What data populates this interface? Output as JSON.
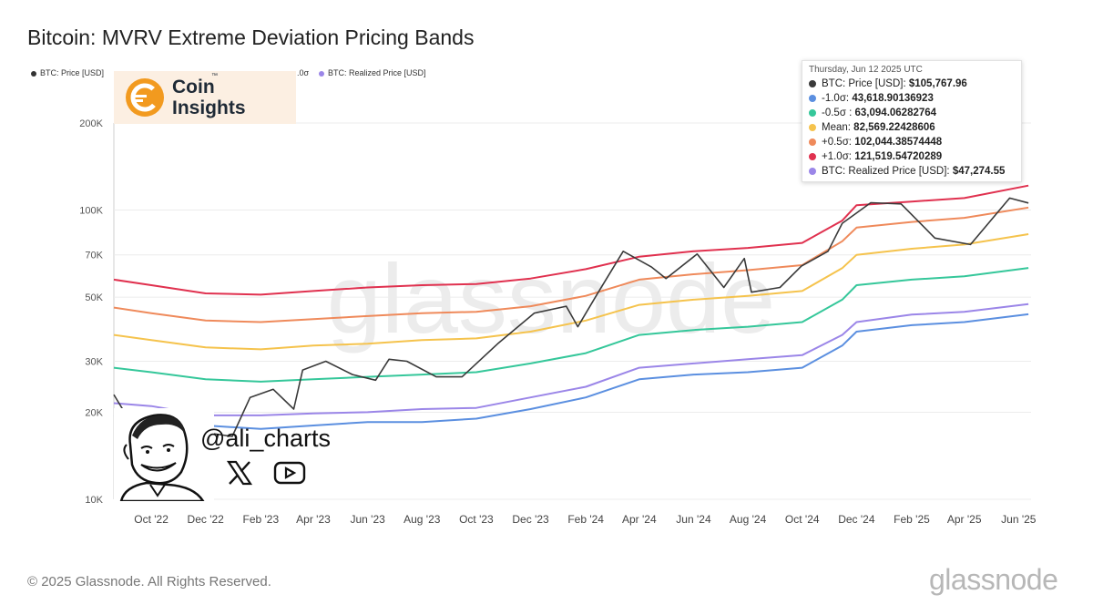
{
  "title": "Bitcoin: MVRV Extreme Deviation Pricing Bands",
  "legend_strip": [
    {
      "label": "BTC: Price [USD]",
      "color": "#333333"
    },
    {
      "label": ".0σ",
      "color": ""
    },
    {
      "label": "BTC: Realized Price [USD]",
      "color": "#9b86e8"
    }
  ],
  "logo": {
    "line1": "Coin",
    "line2": "Insights",
    "tm": "™"
  },
  "tooltip": {
    "date": "Thursday, Jun 12 2025 UTC",
    "rows": [
      {
        "label": "BTC: Price [USD]:",
        "value": "$105,767.96",
        "color": "#3a3a3a"
      },
      {
        "label": "-1.0σ:",
        "value": "43,618.90136923",
        "color": "#5b8fe0"
      },
      {
        "label": "-0.5σ :",
        "value": "63,094.06282764",
        "color": "#35c79a"
      },
      {
        "label": "Mean:",
        "value": "82,569.22428606",
        "color": "#f5c34d"
      },
      {
        "label": "+0.5σ:",
        "value": "102,044.38574448",
        "color": "#ef8a5b"
      },
      {
        "label": "+1.0σ:",
        "value": "121,519.54720289",
        "color": "#e0314f"
      },
      {
        "label": "BTC: Realized Price [USD]:",
        "value": "$47,274.55",
        "color": "#9b86e8"
      }
    ]
  },
  "watermark": "glassnode",
  "handle": "@ali_charts",
  "social_icons": [
    "x-icon",
    "youtube-icon"
  ],
  "copyright": "© 2025 Glassnode. All Rights Reserved.",
  "brand": "glassnode",
  "chart_data": {
    "type": "line",
    "title": "Bitcoin: MVRV Extreme Deviation Pricing Bands",
    "y_scale": "log",
    "ylim": [
      10000,
      200000
    ],
    "yticks": [
      {
        "value": 10000,
        "label": "10K"
      },
      {
        "value": 20000,
        "label": "20K"
      },
      {
        "value": 30000,
        "label": "30K"
      },
      {
        "value": 50000,
        "label": "50K"
      },
      {
        "value": 70000,
        "label": "70K"
      },
      {
        "value": 100000,
        "label": "100K"
      },
      {
        "value": 200000,
        "label": "200K"
      }
    ],
    "xlim": [
      "2022-08-20",
      "2025-06-15"
    ],
    "xticks": [
      {
        "date": "2022-10-01",
        "label": "Oct '22"
      },
      {
        "date": "2022-12-01",
        "label": "Dec '22"
      },
      {
        "date": "2023-02-01",
        "label": "Feb '23"
      },
      {
        "date": "2023-04-01",
        "label": "Apr '23"
      },
      {
        "date": "2023-06-01",
        "label": "Jun '23"
      },
      {
        "date": "2023-08-01",
        "label": "Aug '23"
      },
      {
        "date": "2023-10-01",
        "label": "Oct '23"
      },
      {
        "date": "2023-12-01",
        "label": "Dec '23"
      },
      {
        "date": "2024-02-01",
        "label": "Feb '24"
      },
      {
        "date": "2024-04-01",
        "label": "Apr '24"
      },
      {
        "date": "2024-06-01",
        "label": "Jun '24"
      },
      {
        "date": "2024-08-01",
        "label": "Aug '24"
      },
      {
        "date": "2024-10-01",
        "label": "Oct '24"
      },
      {
        "date": "2024-12-01",
        "label": "Dec '24"
      },
      {
        "date": "2025-02-01",
        "label": "Feb '25"
      },
      {
        "date": "2025-04-01",
        "label": "Apr '25"
      },
      {
        "date": "2025-06-01",
        "label": "Jun '25"
      }
    ],
    "grid": "horizontal",
    "series": [
      {
        "name": "+1.0σ",
        "color": "#e0314f",
        "points": [
          [
            "2022-08-20",
            57500
          ],
          [
            "2022-10-01",
            55000
          ],
          [
            "2022-12-01",
            51500
          ],
          [
            "2023-02-01",
            51000
          ],
          [
            "2023-04-01",
            52500
          ],
          [
            "2023-06-01",
            54000
          ],
          [
            "2023-08-01",
            55000
          ],
          [
            "2023-10-01",
            55500
          ],
          [
            "2023-12-01",
            58000
          ],
          [
            "2024-02-01",
            62500
          ],
          [
            "2024-04-01",
            69000
          ],
          [
            "2024-06-01",
            72000
          ],
          [
            "2024-08-01",
            74000
          ],
          [
            "2024-10-01",
            77000
          ],
          [
            "2024-11-15",
            92000
          ],
          [
            "2024-12-01",
            104000
          ],
          [
            "2025-02-01",
            107000
          ],
          [
            "2025-04-01",
            110000
          ],
          [
            "2025-06-12",
            121519
          ]
        ]
      },
      {
        "name": "+0.5σ",
        "color": "#ef8a5b",
        "points": [
          [
            "2022-08-20",
            46000
          ],
          [
            "2022-10-01",
            44000
          ],
          [
            "2022-12-01",
            41500
          ],
          [
            "2023-02-01",
            41000
          ],
          [
            "2023-04-01",
            42000
          ],
          [
            "2023-06-01",
            43000
          ],
          [
            "2023-08-01",
            44000
          ],
          [
            "2023-10-01",
            44500
          ],
          [
            "2023-12-01",
            46500
          ],
          [
            "2024-02-01",
            50500
          ],
          [
            "2024-04-01",
            57500
          ],
          [
            "2024-06-01",
            60000
          ],
          [
            "2024-08-01",
            62000
          ],
          [
            "2024-10-01",
            64500
          ],
          [
            "2024-11-15",
            78000
          ],
          [
            "2024-12-01",
            87000
          ],
          [
            "2025-02-01",
            91000
          ],
          [
            "2025-04-01",
            94000
          ],
          [
            "2025-06-12",
            102044
          ]
        ]
      },
      {
        "name": "Mean",
        "color": "#f5c34d",
        "points": [
          [
            "2022-08-20",
            37000
          ],
          [
            "2022-10-01",
            35500
          ],
          [
            "2022-12-01",
            33500
          ],
          [
            "2023-02-01",
            33000
          ],
          [
            "2023-04-01",
            34000
          ],
          [
            "2023-06-01",
            34500
          ],
          [
            "2023-08-01",
            35500
          ],
          [
            "2023-10-01",
            36000
          ],
          [
            "2023-12-01",
            38000
          ],
          [
            "2024-02-01",
            41500
          ],
          [
            "2024-04-01",
            47000
          ],
          [
            "2024-06-01",
            49000
          ],
          [
            "2024-08-01",
            50500
          ],
          [
            "2024-10-01",
            52500
          ],
          [
            "2024-11-15",
            63000
          ],
          [
            "2024-12-01",
            70000
          ],
          [
            "2025-02-01",
            73500
          ],
          [
            "2025-04-01",
            76000
          ],
          [
            "2025-06-12",
            82569
          ]
        ]
      },
      {
        "name": "-0.5σ",
        "color": "#35c79a",
        "points": [
          [
            "2022-08-20",
            28500
          ],
          [
            "2022-10-01",
            27500
          ],
          [
            "2022-12-01",
            26000
          ],
          [
            "2023-02-01",
            25500
          ],
          [
            "2023-04-01",
            26000
          ],
          [
            "2023-06-01",
            26500
          ],
          [
            "2023-08-01",
            27000
          ],
          [
            "2023-10-01",
            27500
          ],
          [
            "2023-12-01",
            29500
          ],
          [
            "2024-02-01",
            32000
          ],
          [
            "2024-04-01",
            37000
          ],
          [
            "2024-06-01",
            38500
          ],
          [
            "2024-08-01",
            39500
          ],
          [
            "2024-10-01",
            41000
          ],
          [
            "2024-11-15",
            49000
          ],
          [
            "2024-12-01",
            55000
          ],
          [
            "2025-02-01",
            57500
          ],
          [
            "2025-04-01",
            59000
          ],
          [
            "2025-06-12",
            63094
          ]
        ]
      },
      {
        "name": "-1.0σ",
        "color": "#5b8fe0",
        "points": [
          [
            "2022-08-20",
            19500
          ],
          [
            "2022-10-01",
            19000
          ],
          [
            "2022-12-01",
            18000
          ],
          [
            "2023-02-01",
            17500
          ],
          [
            "2023-04-01",
            18000
          ],
          [
            "2023-06-01",
            18500
          ],
          [
            "2023-08-01",
            18500
          ],
          [
            "2023-10-01",
            19000
          ],
          [
            "2023-12-01",
            20500
          ],
          [
            "2024-02-01",
            22500
          ],
          [
            "2024-04-01",
            26000
          ],
          [
            "2024-06-01",
            27000
          ],
          [
            "2024-08-01",
            27500
          ],
          [
            "2024-10-01",
            28500
          ],
          [
            "2024-11-15",
            34000
          ],
          [
            "2024-12-01",
            38000
          ],
          [
            "2025-02-01",
            40000
          ],
          [
            "2025-04-01",
            41000
          ],
          [
            "2025-06-12",
            43619
          ]
        ]
      },
      {
        "name": "BTC: Realized Price [USD]",
        "color": "#9b86e8",
        "points": [
          [
            "2022-08-20",
            21500
          ],
          [
            "2022-10-01",
            21000
          ],
          [
            "2022-12-01",
            19500
          ],
          [
            "2023-02-01",
            19500
          ],
          [
            "2023-04-01",
            19800
          ],
          [
            "2023-06-01",
            20000
          ],
          [
            "2023-08-01",
            20500
          ],
          [
            "2023-10-01",
            20700
          ],
          [
            "2023-12-01",
            22500
          ],
          [
            "2024-02-01",
            24500
          ],
          [
            "2024-04-01",
            28500
          ],
          [
            "2024-06-01",
            29500
          ],
          [
            "2024-08-01",
            30500
          ],
          [
            "2024-10-01",
            31500
          ],
          [
            "2024-11-15",
            37000
          ],
          [
            "2024-12-01",
            41000
          ],
          [
            "2025-02-01",
            43500
          ],
          [
            "2025-04-01",
            44500
          ],
          [
            "2025-06-12",
            47275
          ]
        ]
      },
      {
        "name": "BTC: Price [USD]",
        "color": "#3a3a3a",
        "points": [
          [
            "2022-08-20",
            23000
          ],
          [
            "2022-09-01",
            20000
          ],
          [
            "2022-10-01",
            19500
          ],
          [
            "2022-10-25",
            20500
          ],
          [
            "2022-11-08",
            16500
          ],
          [
            "2022-12-01",
            17000
          ],
          [
            "2022-12-31",
            16500
          ],
          [
            "2023-01-20",
            22500
          ],
          [
            "2023-02-15",
            24000
          ],
          [
            "2023-03-10",
            20500
          ],
          [
            "2023-03-20",
            28000
          ],
          [
            "2023-04-15",
            30000
          ],
          [
            "2023-05-15",
            27000
          ],
          [
            "2023-06-10",
            25800
          ],
          [
            "2023-06-25",
            30500
          ],
          [
            "2023-07-15",
            30000
          ],
          [
            "2023-08-17",
            26500
          ],
          [
            "2023-09-15",
            26500
          ],
          [
            "2023-10-25",
            34500
          ],
          [
            "2023-12-05",
            44000
          ],
          [
            "2024-01-10",
            46500
          ],
          [
            "2024-01-23",
            39500
          ],
          [
            "2024-02-15",
            52000
          ],
          [
            "2024-03-14",
            72000
          ],
          [
            "2024-04-15",
            63500
          ],
          [
            "2024-05-01",
            58000
          ],
          [
            "2024-06-05",
            70500
          ],
          [
            "2024-07-05",
            54000
          ],
          [
            "2024-07-28",
            68000
          ],
          [
            "2024-08-05",
            52000
          ],
          [
            "2024-09-06",
            54000
          ],
          [
            "2024-09-30",
            64000
          ],
          [
            "2024-10-30",
            72000
          ],
          [
            "2024-11-15",
            90000
          ],
          [
            "2024-12-17",
            106000
          ],
          [
            "2025-01-20",
            105000
          ],
          [
            "2025-02-27",
            80000
          ],
          [
            "2025-04-08",
            76000
          ],
          [
            "2025-05-22",
            110000
          ],
          [
            "2025-06-12",
            105768
          ]
        ]
      }
    ]
  }
}
